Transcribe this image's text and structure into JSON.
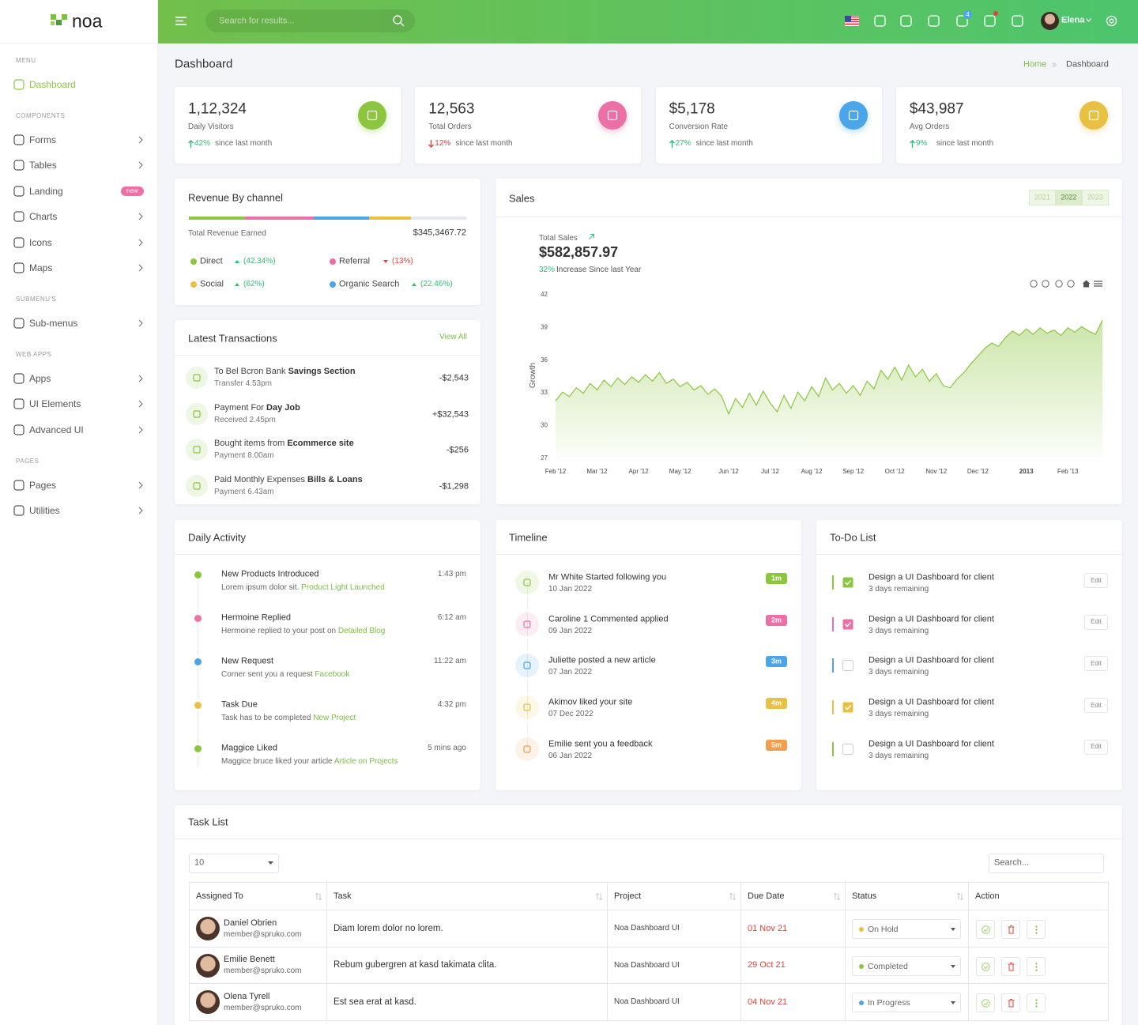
{
  "brand": "noa",
  "search_placeholder": "Search for results...",
  "cart_count": "4",
  "user": "Elena",
  "sidebar": [
    {
      "title": "MENU",
      "items": [
        {
          "label": "Dashboard",
          "active": true
        }
      ]
    },
    {
      "title": "COMPONENTS",
      "items": [
        {
          "label": "Forms"
        },
        {
          "label": "Tables"
        },
        {
          "label": "Landing",
          "badge": "new"
        },
        {
          "label": "Charts"
        },
        {
          "label": "Icons"
        },
        {
          "label": "Maps"
        }
      ]
    },
    {
      "title": "SUBMENU'S",
      "items": [
        {
          "label": "Sub-menus"
        }
      ]
    },
    {
      "title": "WEB APPS",
      "items": [
        {
          "label": "Apps"
        },
        {
          "label": "UI Elements"
        },
        {
          "label": "Advanced UI"
        }
      ]
    },
    {
      "title": "PAGES",
      "items": [
        {
          "label": "Pages"
        },
        {
          "label": "Utilities"
        }
      ]
    }
  ],
  "page_title": "Dashboard",
  "breadcrumb": [
    "Home",
    "Dashboard"
  ],
  "stats": [
    {
      "value": "1,12,324",
      "label": "Daily Visitors",
      "change": "42%",
      "trend": "up",
      "note": "since last month",
      "color": "#8cc63f"
    },
    {
      "value": "12,563",
      "label": "Total Orders",
      "change": "12%",
      "trend": "down",
      "note": "since last month",
      "color": "#ec6fa6"
    },
    {
      "value": "$5,178",
      "label": "Conversion Rate",
      "change": "27%",
      "trend": "up",
      "note": "since last month",
      "color": "#4aa5e9"
    },
    {
      "value": "$43,987",
      "label": "Avg Orders",
      "change": "9%",
      "trend": "up",
      "note": "since last month",
      "color": "#e8c042"
    }
  ],
  "revenue": {
    "title": "Revenue By channel",
    "total_label": "Total Revenue Earned",
    "total": "$345,3467.72",
    "channels": [
      {
        "name": "Direct",
        "share": "(42.34%)",
        "trend": "up",
        "color": "#8cc63f"
      },
      {
        "name": "Referral",
        "share": "(13%)",
        "trend": "down",
        "color": "#ec6fa6"
      },
      {
        "name": "Social",
        "share": "(62%)",
        "trend": "up",
        "color": "#e8c042"
      },
      {
        "name": "Organic Search",
        "share": "(22.46%)",
        "trend": "up",
        "color": "#4aa5e9"
      }
    ]
  },
  "transactions": {
    "title": "Latest Transactions",
    "link": "View All",
    "items": [
      {
        "text": "To Bel Bcron Bank",
        "bold": "Savings Section",
        "sub": "Transfer 4.53pm",
        "amount": "-$2,543"
      },
      {
        "text": "Payment For",
        "bold": "Day Job",
        "sub": "Received 2.45pm",
        "amount": "+$32,543"
      },
      {
        "text": "Bought items from",
        "bold": "Ecommerce site",
        "sub": "Payment 8.00am",
        "amount": "-$256"
      },
      {
        "text": "Paid Monthly Expenses",
        "bold": "Bills & Loans",
        "sub": "Payment 6.43am",
        "amount": "-$1,298"
      }
    ]
  },
  "sales": {
    "title": "Sales",
    "years": [
      "2021",
      "2022",
      "2023"
    ],
    "active_year": 1,
    "total_label": "Total Sales",
    "total": "$582,857.97",
    "increase": "32%",
    "increase_text": "Increase Since last Year"
  },
  "chart_data": {
    "type": "area",
    "y_label": "Growth",
    "color": "#8cc63f",
    "ylim": [
      27,
      42
    ],
    "yticks": [
      27,
      30,
      33,
      36,
      39,
      42
    ],
    "categories": [
      "Feb '12",
      null,
      null,
      null,
      null,
      null,
      "Mar '12",
      null,
      null,
      null,
      null,
      null,
      "Apr '12",
      null,
      null,
      null,
      null,
      null,
      "May '12",
      null,
      null,
      null,
      null,
      null,
      null,
      "Jun '12",
      null,
      null,
      null,
      null,
      null,
      "Jul '12",
      null,
      null,
      null,
      null,
      null,
      "Aug '12",
      null,
      null,
      null,
      null,
      null,
      "Sep '12",
      null,
      null,
      null,
      null,
      null,
      "Oct '12",
      null,
      null,
      null,
      null,
      null,
      "Nov '12",
      null,
      null,
      null,
      null,
      null,
      "Dec '12",
      null,
      null,
      null,
      null,
      null,
      null,
      "2013",
      null,
      null,
      null,
      null,
      null,
      "Feb '13",
      null,
      null,
      null,
      null,
      null
    ],
    "values": [
      32.2,
      33.0,
      32.6,
      33.4,
      32.9,
      33.8,
      33.2,
      34.1,
      33.5,
      34.3,
      33.7,
      34.4,
      33.9,
      34.6,
      34.0,
      34.8,
      33.8,
      34.2,
      33.5,
      33.9,
      33.2,
      33.6,
      32.8,
      33.3,
      32.6,
      31.0,
      32.4,
      31.6,
      32.9,
      31.8,
      33.1,
      32.0,
      31.2,
      32.7,
      31.5,
      33.0,
      32.2,
      33.5,
      32.6,
      34.3,
      33.2,
      33.8,
      32.9,
      33.6,
      32.7,
      34.0,
      33.3,
      35.0,
      34.2,
      35.3,
      34.1,
      35.5,
      34.4,
      35.1,
      34.0,
      34.7,
      33.6,
      33.4,
      34.2,
      34.8,
      35.6,
      36.3,
      37.0,
      37.5,
      37.2,
      38.0,
      38.6,
      38.2,
      38.8,
      38.3,
      38.9,
      38.4,
      38.7,
      38.2,
      38.9,
      38.5,
      39.0,
      38.6,
      38.3,
      39.6
    ]
  },
  "daily_activity": {
    "title": "Daily Activity",
    "items": [
      {
        "title": "New Products Introduced",
        "time": "1:43 pm",
        "text": "Lorem ipsum dolor sit.",
        "link": "Product Light Launched",
        "color": "#8cc63f"
      },
      {
        "title": "Hermoine Replied",
        "time": "6:12 am",
        "text": "Hermoine replied to your post on",
        "link": "Detailed Blog",
        "color": "#ec6fa6"
      },
      {
        "title": "New Request",
        "time": "11:22 am",
        "text": "Corner sent you a request",
        "link": "Facebook",
        "color": "#4aa5e9"
      },
      {
        "title": "Task Due",
        "time": "4:32 pm",
        "text": "Task has to be completed",
        "link": "New Project",
        "color": "#e8c042"
      },
      {
        "title": "Maggice Liked",
        "time": "5 mins ago",
        "text": "Maggice bruce liked your article",
        "link": "Article on Projects",
        "color": "#8cc63f"
      }
    ]
  },
  "timeline": {
    "title": "Timeline",
    "items": [
      {
        "text": "Mr White Started following you",
        "date": "10 Jan 2022",
        "badge": "1m",
        "color": "#8cc63f"
      },
      {
        "text": "Caroline 1 Commented applied",
        "date": "09 Jan 2022",
        "badge": "2m",
        "color": "#ec6fa6"
      },
      {
        "text": "Juliette posted a new article",
        "date": "07 Jan 2022",
        "badge": "3m",
        "color": "#4aa5e9"
      },
      {
        "text": "Akimov liked your site",
        "date": "07 Dec 2022",
        "badge": "4m",
        "color": "#e8c042"
      },
      {
        "text": "Emilie sent you a feedback",
        "date": "06 Jan 2022",
        "badge": "5m",
        "color": "#f29e4c"
      }
    ]
  },
  "todo": {
    "title": "To-Do List",
    "items": [
      {
        "text": "Design a UI Dashboard for client",
        "sub": "3 days remaining",
        "action": "Edit",
        "checked": true,
        "color": "#8cc63f"
      },
      {
        "text": "Design a UI Dashboard for client",
        "sub": "3 days remaining",
        "action": "Edit",
        "checked": true,
        "color": "#ec6fa6"
      },
      {
        "text": "Design a UI Dashboard for client",
        "sub": "3 days remaining",
        "action": "Edit",
        "checked": false,
        "color": "#4aa5e9"
      },
      {
        "text": "Design a UI Dashboard for client",
        "sub": "3 days remaining",
        "action": "Edit",
        "checked": true,
        "color": "#e8c042"
      },
      {
        "text": "Design a UI Dashboard for client",
        "sub": "3 days remaining",
        "action": "Edit",
        "checked": false,
        "color": "#8cc63f"
      }
    ]
  },
  "task_list": {
    "title": "Task List",
    "page_size": "10",
    "search_placeholder": "Search...",
    "columns": [
      "Assigned To",
      "Task",
      "Project",
      "Due Date",
      "Status",
      "Action"
    ],
    "rows": [
      {
        "name": "Daniel Obrien",
        "email": "member@spruko.com",
        "task": "Diam lorem dolor no lorem.",
        "project": "Noa Dashboard UI",
        "due": "01 Nov 21",
        "status": "On Hold",
        "status_color": "#e8c042"
      },
      {
        "name": "Emilie Benett",
        "email": "member@spruko.com",
        "task": "Rebum gubergren at kasd takimata clita.",
        "project": "Noa Dashboard UI",
        "due": "29 Oct 21",
        "status": "Completed",
        "status_color": "#8cc63f"
      },
      {
        "name": "Olena Tyrell",
        "email": "member@spruko.com",
        "task": "Est sea erat at kasd.",
        "project": "Noa Dashboard UI",
        "due": "04 Nov 21",
        "status": "In Progress",
        "status_color": "#4aa5e9"
      }
    ]
  }
}
